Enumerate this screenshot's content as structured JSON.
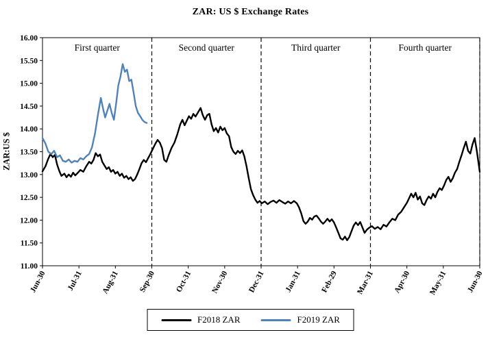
{
  "title": "ZAR: US $ Exchange Rates",
  "colors": {
    "f2018_line": "#000000",
    "f2019_line": "#4F81BD",
    "axis": "#000000",
    "background": "#FFFFFF"
  },
  "legend": {
    "items": [
      {
        "label": "F2018 ZAR",
        "color": "#000000"
      },
      {
        "label": "F2019 ZAR",
        "color": "#4F81BD"
      }
    ]
  },
  "chart_data": {
    "type": "line",
    "title": "ZAR: US $ Exchange Rates",
    "xlabel": "",
    "ylabel": "ZAR:US $",
    "xlim": [
      0,
      12
    ],
    "ylim": [
      11.0,
      16.0
    ],
    "grid": false,
    "legend_position": "bottom-center",
    "x_tick_labels": [
      "Jun-30",
      "Jul-31",
      "Aug-31",
      "Sep-30",
      "Oct-31",
      "Nov-30",
      "Dec-31",
      "Jan-31",
      "Feb-29",
      "Mar-31",
      "Apr-30",
      "May-31",
      "Jun-30"
    ],
    "y_ticks": [
      11.0,
      11.5,
      12.0,
      12.5,
      13.0,
      13.5,
      14.0,
      14.5,
      15.0,
      15.5,
      16.0
    ],
    "y_tick_labels": [
      "11.00",
      "11.50",
      "12.00",
      "12.50",
      "13.00",
      "13.50",
      "14.00",
      "14.50",
      "15.00",
      "15.50",
      "16.00"
    ],
    "quarter_annotations": [
      {
        "label": "First quarter",
        "x_center": 1.5
      },
      {
        "label": "Second quarter",
        "x_center": 4.5
      },
      {
        "label": "Third quarter",
        "x_center": 7.5
      },
      {
        "label": "Fourth quarter",
        "x_center": 10.5
      }
    ],
    "quarter_separators_x": [
      3,
      6,
      9,
      12
    ],
    "series": [
      {
        "name": "F2018 ZAR",
        "color": "#000000",
        "points": [
          [
            0,
            13.07
          ],
          [
            0.08,
            13.18
          ],
          [
            0.16,
            13.35
          ],
          [
            0.22,
            13.45
          ],
          [
            0.28,
            13.38
          ],
          [
            0.34,
            13.43
          ],
          [
            0.4,
            13.22
          ],
          [
            0.46,
            13.08
          ],
          [
            0.52,
            12.97
          ],
          [
            0.6,
            13.02
          ],
          [
            0.66,
            12.94
          ],
          [
            0.72,
            13.0
          ],
          [
            0.78,
            12.95
          ],
          [
            0.84,
            13.04
          ],
          [
            0.9,
            12.98
          ],
          [
            0.96,
            13.03
          ],
          [
            1.04,
            13.1
          ],
          [
            1.12,
            13.06
          ],
          [
            1.2,
            13.18
          ],
          [
            1.28,
            13.28
          ],
          [
            1.34,
            13.24
          ],
          [
            1.4,
            13.32
          ],
          [
            1.46,
            13.47
          ],
          [
            1.52,
            13.4
          ],
          [
            1.58,
            13.44
          ],
          [
            1.64,
            13.28
          ],
          [
            1.7,
            13.2
          ],
          [
            1.76,
            13.12
          ],
          [
            1.82,
            13.16
          ],
          [
            1.88,
            13.06
          ],
          [
            1.94,
            13.1
          ],
          [
            2.0,
            13.02
          ],
          [
            2.06,
            13.06
          ],
          [
            2.12,
            12.97
          ],
          [
            2.18,
            13.02
          ],
          [
            2.24,
            12.93
          ],
          [
            2.3,
            12.97
          ],
          [
            2.36,
            12.9
          ],
          [
            2.42,
            12.94
          ],
          [
            2.48,
            12.86
          ],
          [
            2.54,
            12.9
          ],
          [
            2.6,
            13.0
          ],
          [
            2.66,
            13.12
          ],
          [
            2.72,
            13.25
          ],
          [
            2.78,
            13.32
          ],
          [
            2.84,
            13.27
          ],
          [
            2.9,
            13.36
          ],
          [
            2.96,
            13.45
          ],
          [
            3.02,
            13.55
          ],
          [
            3.1,
            13.68
          ],
          [
            3.16,
            13.76
          ],
          [
            3.22,
            13.7
          ],
          [
            3.28,
            13.58
          ],
          [
            3.34,
            13.32
          ],
          [
            3.4,
            13.28
          ],
          [
            3.46,
            13.42
          ],
          [
            3.54,
            13.58
          ],
          [
            3.62,
            13.7
          ],
          [
            3.7,
            13.88
          ],
          [
            3.78,
            14.1
          ],
          [
            3.84,
            14.2
          ],
          [
            3.9,
            14.08
          ],
          [
            3.96,
            14.18
          ],
          [
            4.02,
            14.28
          ],
          [
            4.08,
            14.22
          ],
          [
            4.14,
            14.33
          ],
          [
            4.2,
            14.27
          ],
          [
            4.28,
            14.38
          ],
          [
            4.34,
            14.46
          ],
          [
            4.4,
            14.3
          ],
          [
            4.46,
            14.2
          ],
          [
            4.52,
            14.3
          ],
          [
            4.58,
            14.33
          ],
          [
            4.64,
            14.1
          ],
          [
            4.7,
            13.95
          ],
          [
            4.76,
            14.02
          ],
          [
            4.82,
            13.92
          ],
          [
            4.88,
            14.05
          ],
          [
            4.94,
            13.97
          ],
          [
            5.0,
            14.02
          ],
          [
            5.06,
            13.9
          ],
          [
            5.12,
            13.84
          ],
          [
            5.18,
            13.6
          ],
          [
            5.24,
            13.5
          ],
          [
            5.3,
            13.45
          ],
          [
            5.36,
            13.52
          ],
          [
            5.42,
            13.47
          ],
          [
            5.48,
            13.53
          ],
          [
            5.54,
            13.4
          ],
          [
            5.6,
            13.18
          ],
          [
            5.66,
            12.92
          ],
          [
            5.72,
            12.68
          ],
          [
            5.78,
            12.55
          ],
          [
            5.84,
            12.45
          ],
          [
            5.9,
            12.38
          ],
          [
            5.96,
            12.42
          ],
          [
            6.02,
            12.37
          ],
          [
            6.1,
            12.41
          ],
          [
            6.18,
            12.35
          ],
          [
            6.26,
            12.4
          ],
          [
            6.34,
            12.43
          ],
          [
            6.42,
            12.38
          ],
          [
            6.5,
            12.44
          ],
          [
            6.58,
            12.4
          ],
          [
            6.66,
            12.36
          ],
          [
            6.74,
            12.41
          ],
          [
            6.82,
            12.37
          ],
          [
            6.9,
            12.42
          ],
          [
            6.98,
            12.37
          ],
          [
            7.04,
            12.28
          ],
          [
            7.1,
            12.15
          ],
          [
            7.16,
            11.98
          ],
          [
            7.22,
            11.92
          ],
          [
            7.28,
            11.97
          ],
          [
            7.34,
            12.05
          ],
          [
            7.4,
            12.01
          ],
          [
            7.46,
            12.08
          ],
          [
            7.52,
            12.1
          ],
          [
            7.58,
            12.04
          ],
          [
            7.64,
            11.97
          ],
          [
            7.7,
            11.92
          ],
          [
            7.76,
            11.97
          ],
          [
            7.82,
            12.03
          ],
          [
            7.88,
            11.97
          ],
          [
            7.94,
            12.02
          ],
          [
            8.0,
            11.95
          ],
          [
            8.06,
            11.84
          ],
          [
            8.12,
            11.72
          ],
          [
            8.18,
            11.6
          ],
          [
            8.24,
            11.57
          ],
          [
            8.3,
            11.64
          ],
          [
            8.36,
            11.56
          ],
          [
            8.42,
            11.63
          ],
          [
            8.48,
            11.76
          ],
          [
            8.54,
            11.88
          ],
          [
            8.6,
            11.95
          ],
          [
            8.66,
            11.89
          ],
          [
            8.72,
            11.96
          ],
          [
            8.78,
            11.84
          ],
          [
            8.84,
            11.72
          ],
          [
            8.9,
            11.79
          ],
          [
            8.96,
            11.83
          ],
          [
            9.04,
            11.87
          ],
          [
            9.12,
            11.81
          ],
          [
            9.2,
            11.85
          ],
          [
            9.28,
            11.8
          ],
          [
            9.36,
            11.9
          ],
          [
            9.44,
            11.86
          ],
          [
            9.52,
            11.95
          ],
          [
            9.6,
            12.03
          ],
          [
            9.68,
            12.0
          ],
          [
            9.76,
            12.12
          ],
          [
            9.84,
            12.18
          ],
          [
            9.92,
            12.28
          ],
          [
            10.0,
            12.38
          ],
          [
            10.06,
            12.48
          ],
          [
            10.12,
            12.58
          ],
          [
            10.18,
            12.5
          ],
          [
            10.24,
            12.6
          ],
          [
            10.3,
            12.45
          ],
          [
            10.36,
            12.52
          ],
          [
            10.42,
            12.37
          ],
          [
            10.48,
            12.33
          ],
          [
            10.54,
            12.44
          ],
          [
            10.6,
            12.52
          ],
          [
            10.66,
            12.47
          ],
          [
            10.72,
            12.58
          ],
          [
            10.78,
            12.5
          ],
          [
            10.84,
            12.62
          ],
          [
            10.9,
            12.7
          ],
          [
            10.96,
            12.66
          ],
          [
            11.02,
            12.76
          ],
          [
            11.08,
            12.88
          ],
          [
            11.14,
            12.95
          ],
          [
            11.2,
            12.84
          ],
          [
            11.26,
            12.92
          ],
          [
            11.32,
            13.04
          ],
          [
            11.38,
            13.12
          ],
          [
            11.44,
            13.28
          ],
          [
            11.5,
            13.42
          ],
          [
            11.56,
            13.58
          ],
          [
            11.62,
            13.72
          ],
          [
            11.68,
            13.52
          ],
          [
            11.74,
            13.46
          ],
          [
            11.8,
            13.66
          ],
          [
            11.86,
            13.8
          ],
          [
            11.92,
            13.52
          ],
          [
            12.0,
            13.06
          ]
        ]
      },
      {
        "name": "F2019 ZAR",
        "color": "#4F81BD",
        "points": [
          [
            0,
            13.8
          ],
          [
            0.08,
            13.68
          ],
          [
            0.16,
            13.5
          ],
          [
            0.24,
            13.45
          ],
          [
            0.32,
            13.52
          ],
          [
            0.4,
            13.38
          ],
          [
            0.48,
            13.42
          ],
          [
            0.56,
            13.3
          ],
          [
            0.64,
            13.28
          ],
          [
            0.72,
            13.33
          ],
          [
            0.8,
            13.26
          ],
          [
            0.88,
            13.3
          ],
          [
            0.96,
            13.28
          ],
          [
            1.04,
            13.36
          ],
          [
            1.12,
            13.33
          ],
          [
            1.2,
            13.4
          ],
          [
            1.28,
            13.45
          ],
          [
            1.36,
            13.6
          ],
          [
            1.44,
            13.9
          ],
          [
            1.52,
            14.3
          ],
          [
            1.6,
            14.68
          ],
          [
            1.66,
            14.45
          ],
          [
            1.72,
            14.25
          ],
          [
            1.78,
            14.4
          ],
          [
            1.84,
            14.55
          ],
          [
            1.9,
            14.35
          ],
          [
            1.96,
            14.2
          ],
          [
            2.02,
            14.55
          ],
          [
            2.08,
            14.95
          ],
          [
            2.14,
            15.15
          ],
          [
            2.2,
            15.42
          ],
          [
            2.26,
            15.25
          ],
          [
            2.32,
            15.3
          ],
          [
            2.38,
            15.05
          ],
          [
            2.44,
            15.08
          ],
          [
            2.5,
            14.8
          ],
          [
            2.56,
            14.5
          ],
          [
            2.62,
            14.35
          ],
          [
            2.68,
            14.28
          ],
          [
            2.74,
            14.2
          ],
          [
            2.8,
            14.15
          ],
          [
            2.86,
            14.13
          ]
        ]
      }
    ]
  }
}
